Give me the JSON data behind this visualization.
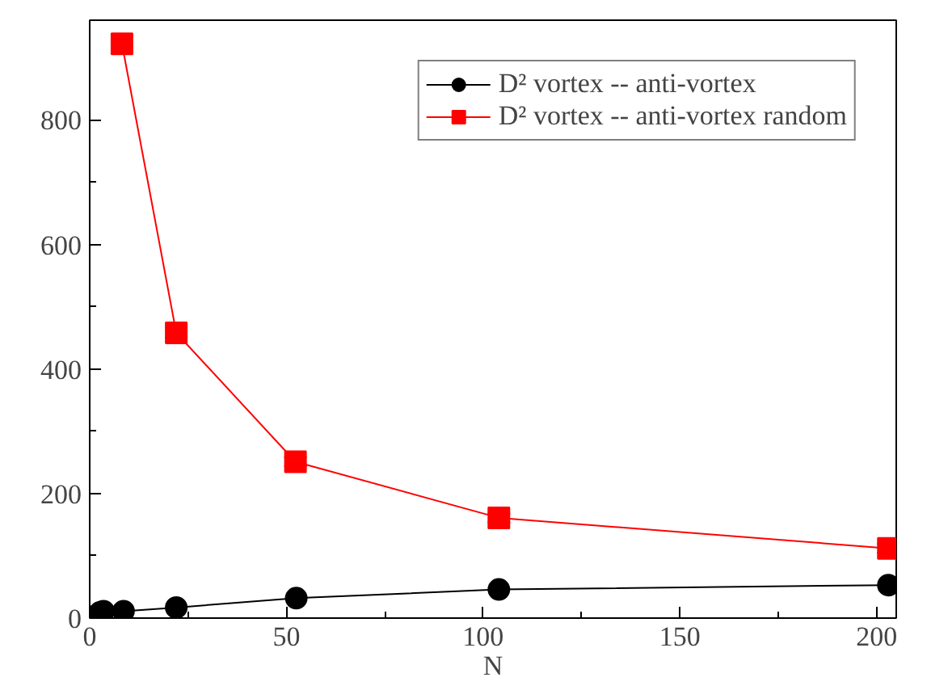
{
  "chart_data": {
    "type": "line",
    "xlabel": "N",
    "xlim": [
      0,
      205
    ],
    "xticks": [
      0,
      50,
      100,
      150,
      200
    ],
    "ylim": [
      0,
      960
    ],
    "yticks": [
      0,
      200,
      400,
      600,
      800
    ],
    "series": [
      {
        "name": "D² vortex -- anti-vortex",
        "color": "#000000",
        "marker": "circle",
        "x": [
          0.5,
          2.6,
          3.5,
          8.6,
          22,
          52.5,
          104,
          203
        ],
        "values": [
          2,
          9,
          11,
          11,
          17,
          32,
          46,
          53
        ]
      },
      {
        "name": "D² vortex -- anti-vortex random",
        "color": "#ff0000",
        "marker": "square",
        "x": [
          8.2,
          22,
          52.3,
          104,
          203
        ],
        "values": [
          922,
          458,
          251,
          161,
          112
        ],
        "errors": [
          15,
          8,
          7,
          7,
          7
        ]
      }
    ],
    "grid": false,
    "legend": "top right"
  }
}
